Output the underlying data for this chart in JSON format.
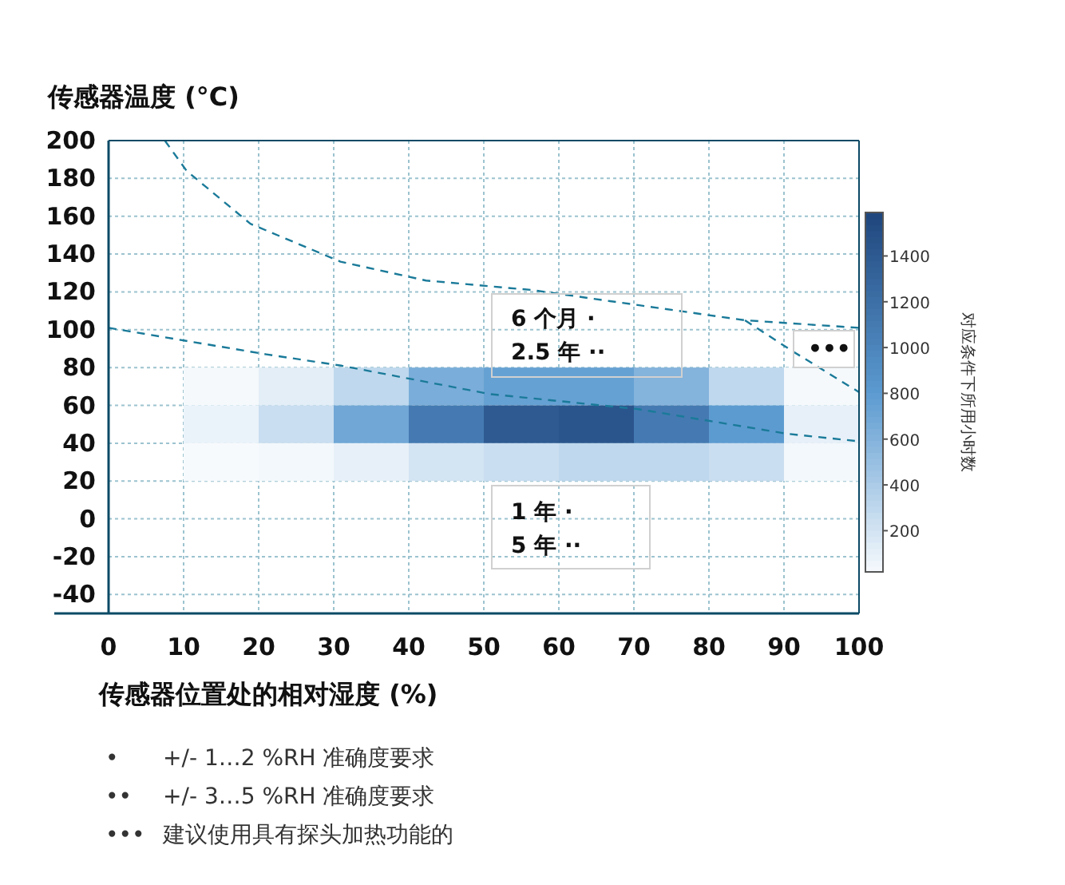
{
  "chart_data": {
    "type": "heatmap",
    "ylabel": "传感器温度 (°C)",
    "xlabel": "传感器位置处的相对湿度 (%)",
    "clabel": "对应条件下所用小时数",
    "x": [
      15,
      25,
      35,
      45,
      55,
      65,
      75,
      85,
      95
    ],
    "y": [
      70,
      50,
      30
    ],
    "cells": [
      [
        30,
        120,
        300,
        650,
        750,
        750,
        600,
        300,
        30
      ],
      [
        80,
        250,
        700,
        1100,
        1400,
        1450,
        1100,
        800,
        100
      ],
      [
        20,
        40,
        100,
        200,
        250,
        300,
        300,
        250,
        40
      ]
    ],
    "clim": [
      20,
      1590
    ],
    "cticks": [
      200,
      400,
      600,
      800,
      1000,
      1200,
      1400
    ],
    "xlim": [
      0,
      100
    ],
    "xticks": [
      0,
      10,
      20,
      30,
      40,
      50,
      60,
      70,
      80,
      90,
      100
    ],
    "ylim": [
      -50,
      200
    ],
    "yticks": [
      -40,
      -20,
      0,
      20,
      40,
      60,
      80,
      100,
      120,
      140,
      160,
      180,
      200
    ],
    "grid": true,
    "series": [
      {
        "type": "line",
        "color": "#1a7a99",
        "line_style": "dashed",
        "x": [
          7.5,
          10.4,
          18.9,
          30.9,
          42.3,
          56.4,
          84.8,
          100
        ],
        "values": [
          200,
          184,
          156,
          136,
          126,
          121,
          105,
          101
        ]
      },
      {
        "type": "line",
        "color": "#1a7a99",
        "line_style": "dashed",
        "x": [
          84.8,
          91,
          100
        ],
        "values": [
          105,
          89,
          67
        ]
      },
      {
        "type": "line",
        "color": "#1a7a99",
        "line_style": "dashed",
        "x": [
          0,
          21,
          31,
          50.8,
          70.6,
          90.4,
          100
        ],
        "values": [
          101,
          87,
          81,
          66,
          58,
          45,
          41
        ]
      }
    ],
    "annotations": [
      "6 个月 ·",
      "2.5 年 ··",
      "1 年 ·",
      "5 年 ··",
      "•••",
      "•",
      "+/- 1…2 %RH 准确度要求",
      "••",
      "+/- 3…5 %RH 准确度要求",
      "•••",
      "建议使用具有探头加热功能的"
    ]
  }
}
